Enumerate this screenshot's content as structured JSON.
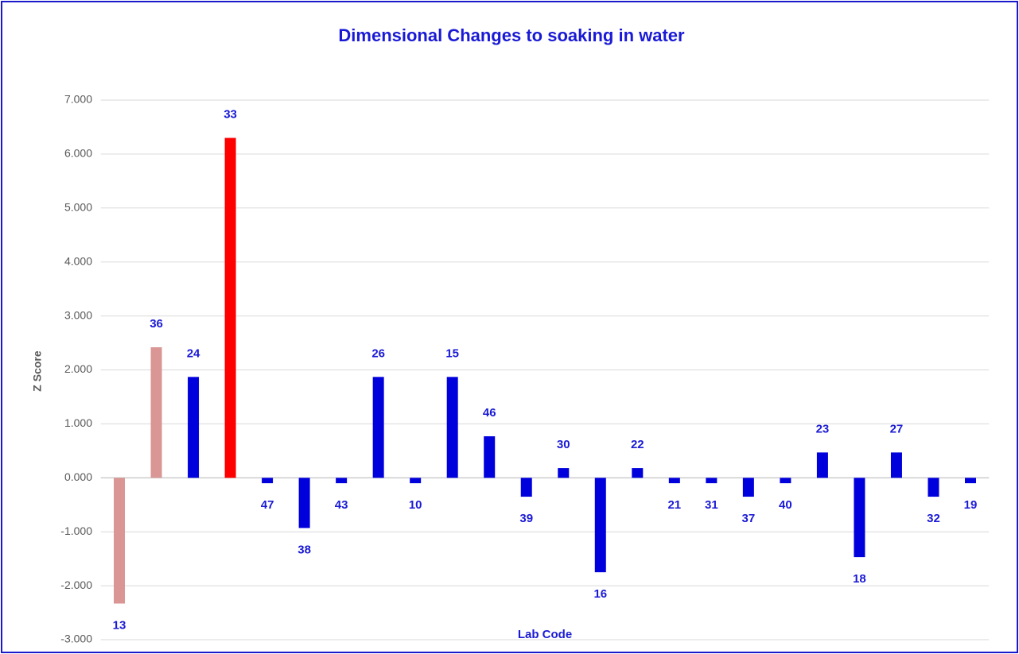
{
  "chart_data": {
    "type": "bar",
    "title": "Dimensional Changes to soaking in water",
    "x_label": "Lab Code",
    "y_label": "Z Score",
    "categories": [
      "13",
      "36",
      "24",
      "33",
      "47",
      "38",
      "43",
      "26",
      "10",
      "15",
      "46",
      "39",
      "30",
      "16",
      "22",
      "21",
      "31",
      "37",
      "40",
      "23",
      "18",
      "27",
      "32",
      "19"
    ],
    "values": [
      -2.33,
      2.42,
      1.87,
      6.3,
      -0.1,
      -0.93,
      -0.1,
      1.87,
      -0.1,
      1.87,
      0.77,
      -0.35,
      0.18,
      -1.75,
      0.18,
      -0.1,
      -0.1,
      -0.35,
      -0.1,
      0.47,
      -1.47,
      0.47,
      -0.35,
      -0.1
    ],
    "colors": [
      "#d99694",
      "#d99694",
      "#0000dd",
      "#ff0000",
      "#0000dd",
      "#0000dd",
      "#0000dd",
      "#0000dd",
      "#0000dd",
      "#0000dd",
      "#0000dd",
      "#0000dd",
      "#0000dd",
      "#0000dd",
      "#0000dd",
      "#0000dd",
      "#0000dd",
      "#0000dd",
      "#0000dd",
      "#0000dd",
      "#0000dd",
      "#0000dd",
      "#0000dd",
      "#0000dd"
    ],
    "ylim": [
      -3,
      7
    ],
    "yticks": [
      {
        "value": -3,
        "label": "-3.000"
      },
      {
        "value": -2,
        "label": "-2.000"
      },
      {
        "value": -1,
        "label": "-1.000"
      },
      {
        "value": 0,
        "label": "0.000"
      },
      {
        "value": 1,
        "label": "1.000"
      },
      {
        "value": 2,
        "label": "2.000"
      },
      {
        "value": 3,
        "label": "3.000"
      },
      {
        "value": 4,
        "label": "4.000"
      },
      {
        "value": 5,
        "label": "5.000"
      },
      {
        "value": 6,
        "label": "6.000"
      },
      {
        "value": 7,
        "label": "7.000"
      }
    ],
    "grid": true
  }
}
